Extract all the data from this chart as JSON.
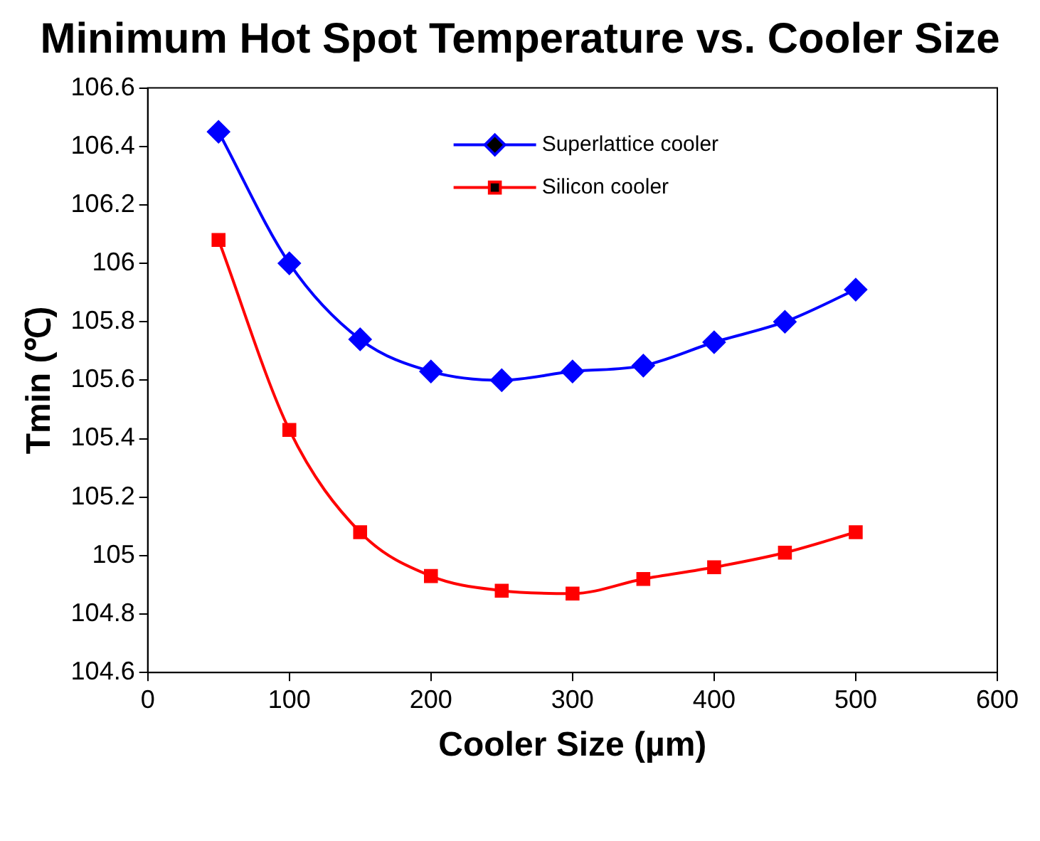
{
  "chart_data": {
    "type": "line",
    "title": "Minimum Hot Spot Temperature vs. Cooler Size",
    "xlabel": "Cooler Size (µm)",
    "ylabel": "Tmin (℃)",
    "x": [
      50,
      100,
      150,
      200,
      250,
      300,
      350,
      400,
      450,
      500
    ],
    "series": [
      {
        "name": "Superlattice cooler",
        "color": "#0000ff",
        "marker": "diamond",
        "values": [
          106.45,
          106.0,
          105.74,
          105.63,
          105.6,
          105.63,
          105.65,
          105.73,
          105.8,
          105.91
        ]
      },
      {
        "name": "Silicon cooler",
        "color": "#ff0000",
        "marker": "square",
        "values": [
          106.08,
          105.43,
          105.08,
          104.93,
          104.88,
          104.87,
          104.92,
          104.96,
          105.01,
          105.08
        ]
      }
    ],
    "xlim": [
      0,
      600
    ],
    "xticks": [
      0,
      100,
      200,
      300,
      400,
      500,
      600
    ],
    "ylim": [
      104.6,
      106.6
    ],
    "yticks": [
      104.6,
      104.8,
      105,
      105.2,
      105.4,
      105.6,
      105.8,
      106,
      106.2,
      106.4,
      106.6
    ],
    "grid": false,
    "legend": "top"
  }
}
